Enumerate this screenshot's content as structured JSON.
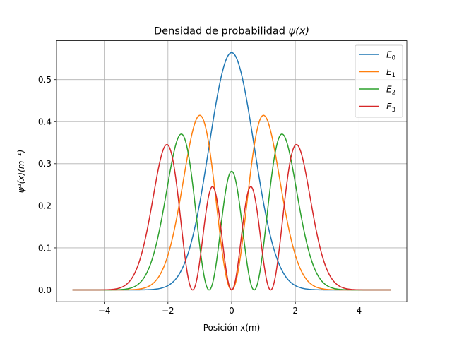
{
  "chart_data": {
    "type": "line",
    "title_main": "Densidad de probabilidad ",
    "title_math": "ψ(x)",
    "xlabel": "Posición x(m)",
    "ylabel_math": "ψ²(x)(m⁻¹)",
    "xlim": [
      -5.5,
      5.5
    ],
    "ylim": [
      -0.028,
      0.5925
    ],
    "x_ticks": [
      -4,
      -2,
      0,
      2,
      4
    ],
    "x_tick_labels": [
      "−4",
      "−2",
      "0",
      "2",
      "4"
    ],
    "y_ticks": [
      0.0,
      0.1,
      0.2,
      0.3,
      0.4,
      0.5
    ],
    "y_tick_labels": [
      "0.0",
      "0.1",
      "0.2",
      "0.3",
      "0.4",
      "0.5"
    ],
    "grid": true,
    "legend_position": "top-right",
    "x_range": [
      -5,
      5
    ],
    "series": [
      {
        "name": "E0",
        "base": "E",
        "sub": "0",
        "n": 0,
        "color": "#1f77b4"
      },
      {
        "name": "E1",
        "base": "E",
        "sub": "1",
        "n": 1,
        "color": "#ff7f0e"
      },
      {
        "name": "E2",
        "base": "E",
        "sub": "2",
        "n": 2,
        "color": "#2ca02c"
      },
      {
        "name": "E3",
        "base": "E",
        "sub": "3",
        "n": 3,
        "color": "#d62728"
      }
    ]
  }
}
